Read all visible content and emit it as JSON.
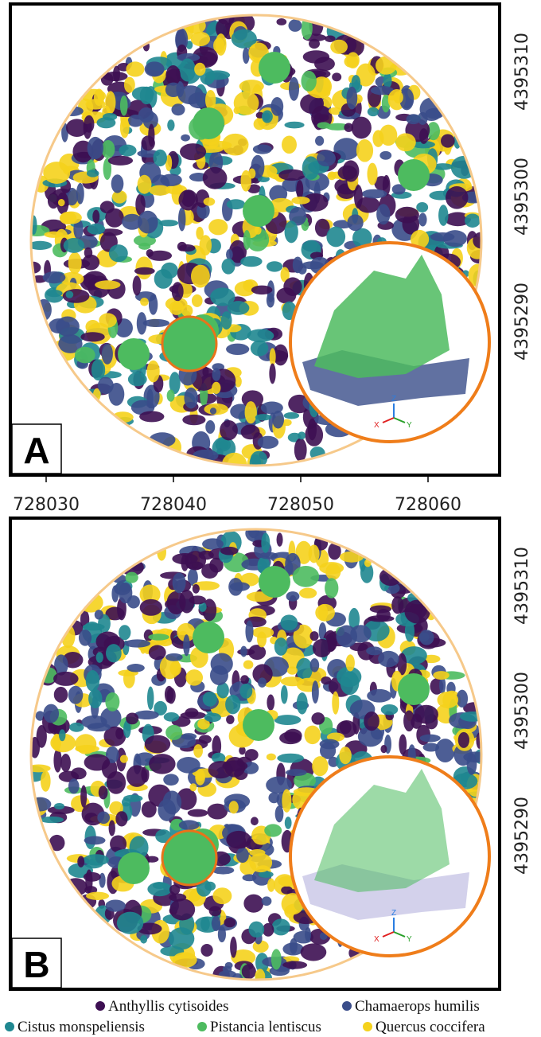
{
  "panels": [
    {
      "label": "A",
      "y_ticks": [
        "4395310",
        "4395300",
        "4395290"
      ],
      "inset_axes": [
        "Z",
        "X",
        "Y"
      ]
    },
    {
      "label": "B",
      "y_ticks": [
        "4395310",
        "4395300",
        "4395290"
      ],
      "inset_axes": [
        "Z",
        "X",
        "Y"
      ]
    }
  ],
  "x_ticks": [
    "728030",
    "728040",
    "728050",
    "728060"
  ],
  "legend": [
    {
      "name": "Anthyllis cytisoides",
      "color": "#3d0f52"
    },
    {
      "name": "Chamaerops humilis",
      "color": "#3a4d8a"
    },
    {
      "name": "Cistus monspeliensis",
      "color": "#1f8790"
    },
    {
      "name": "Pistancia lentiscus",
      "color": "#4dbb5f"
    },
    {
      "name": "Quercus coccifera",
      "color": "#f5d21c"
    }
  ]
}
